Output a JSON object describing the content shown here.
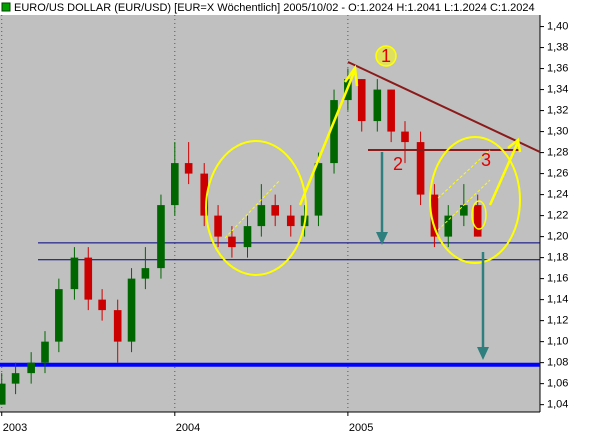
{
  "chart_data": {
    "type": "candlestick",
    "title": "EURO/US DOLLAR (EUR/USD) [EUR=X  Wöchentlich] 2005/10/02 - O:1.2024 H:1.2041 L:1.2024 C:1.2024",
    "x": [
      2003.0,
      2003.08,
      2003.17,
      2003.25,
      2003.33,
      2003.42,
      2003.5,
      2003.58,
      2003.67,
      2003.75,
      2003.83,
      2003.92,
      2004.0,
      2004.08,
      2004.17,
      2004.25,
      2004.33,
      2004.42,
      2004.5,
      2004.58,
      2004.67,
      2004.75,
      2004.83,
      2004.92,
      2005.0,
      2005.08,
      2005.17,
      2005.25,
      2005.33,
      2005.42,
      2005.5,
      2005.58,
      2005.67,
      2005.75
    ],
    "open": [
      1.04,
      1.06,
      1.07,
      1.08,
      1.1,
      1.15,
      1.18,
      1.14,
      1.13,
      1.1,
      1.16,
      1.17,
      1.23,
      1.27,
      1.26,
      1.22,
      1.2,
      1.19,
      1.21,
      1.23,
      1.22,
      1.21,
      1.22,
      1.27,
      1.33,
      1.35,
      1.31,
      1.34,
      1.3,
      1.29,
      1.24,
      1.2,
      1.22,
      1.23
    ],
    "high": [
      1.07,
      1.08,
      1.09,
      1.11,
      1.16,
      1.19,
      1.19,
      1.15,
      1.14,
      1.17,
      1.19,
      1.24,
      1.29,
      1.29,
      1.27,
      1.23,
      1.21,
      1.22,
      1.25,
      1.24,
      1.23,
      1.23,
      1.28,
      1.34,
      1.36,
      1.35,
      1.35,
      1.34,
      1.31,
      1.3,
      1.25,
      1.23,
      1.25,
      1.24
    ],
    "low": [
      1.04,
      1.05,
      1.06,
      1.07,
      1.09,
      1.14,
      1.13,
      1.12,
      1.08,
      1.09,
      1.15,
      1.16,
      1.22,
      1.25,
      1.21,
      1.19,
      1.18,
      1.18,
      1.2,
      1.21,
      1.2,
      1.2,
      1.21,
      1.26,
      1.32,
      1.3,
      1.3,
      1.29,
      1.27,
      1.23,
      1.19,
      1.19,
      1.21,
      1.2
    ],
    "close": [
      1.06,
      1.07,
      1.08,
      1.1,
      1.15,
      1.18,
      1.14,
      1.13,
      1.1,
      1.16,
      1.17,
      1.23,
      1.27,
      1.26,
      1.22,
      1.2,
      1.19,
      1.21,
      1.23,
      1.22,
      1.21,
      1.22,
      1.27,
      1.33,
      1.35,
      1.31,
      1.34,
      1.3,
      1.29,
      1.24,
      1.2,
      1.22,
      1.23,
      1.2
    ],
    "up_color": "#006600",
    "down_color": "#cc0000",
    "xlim": [
      2002.99,
      2006.11
    ],
    "xticks": [
      2003,
      2004,
      2005
    ],
    "ylim": [
      1.033,
      1.411
    ],
    "yticks": [
      {
        "value": 1.04,
        "label": "1,04"
      },
      {
        "value": 1.06,
        "label": "1,06"
      },
      {
        "value": 1.08,
        "label": "1,08"
      },
      {
        "value": 1.1,
        "label": "1,10"
      },
      {
        "value": 1.12,
        "label": "1,12"
      },
      {
        "value": 1.14,
        "label": "1,14"
      },
      {
        "value": 1.16,
        "label": "1,16"
      },
      {
        "value": 1.18,
        "label": "1,18"
      },
      {
        "value": 1.2,
        "label": "1,20"
      },
      {
        "value": 1.22,
        "label": "1,22"
      },
      {
        "value": 1.24,
        "label": "1,24"
      },
      {
        "value": 1.26,
        "label": "1,26"
      },
      {
        "value": 1.28,
        "label": "1,28"
      },
      {
        "value": 1.3,
        "label": "1,30"
      },
      {
        "value": 1.32,
        "label": "1,32"
      },
      {
        "value": 1.34,
        "label": "1,34"
      },
      {
        "value": 1.36,
        "label": "1,36"
      },
      {
        "value": 1.38,
        "label": "1,38"
      },
      {
        "value": 1.4,
        "label": "1,40"
      }
    ],
    "levels": [
      1.194,
      1.178,
      1.078
    ],
    "annotations": [
      "1",
      "2",
      "3"
    ]
  }
}
